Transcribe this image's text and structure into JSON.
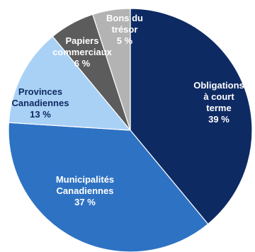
{
  "chart_data": {
    "type": "pie",
    "title": "",
    "slices": [
      {
        "lines": [
          "Obligations",
          "à court",
          "terme"
        ],
        "value_label": "39 %",
        "value": 39,
        "color": "#0e2a63",
        "text_color": "#ffffff"
      },
      {
        "lines": [
          "Municipalités",
          "Canadiennes"
        ],
        "value_label": "37 %",
        "value": 37,
        "color": "#2e72c3",
        "text_color": "#ffffff"
      },
      {
        "lines": [
          "Provinces",
          "Canadiennes"
        ],
        "value_label": "13 %",
        "value": 13,
        "color": "#a9d1f6",
        "text_color": "#0e2a63"
      },
      {
        "lines": [
          "Papiers",
          "commerciaux"
        ],
        "value_label": "6 %",
        "value": 6,
        "color": "#5c5c5c",
        "text_color": "#ffffff"
      },
      {
        "lines": [
          "Bons du",
          "trésor"
        ],
        "value_label": "5 %",
        "value": 5,
        "color": "#b3b3b3",
        "text_color": "#ffffff"
      }
    ]
  }
}
